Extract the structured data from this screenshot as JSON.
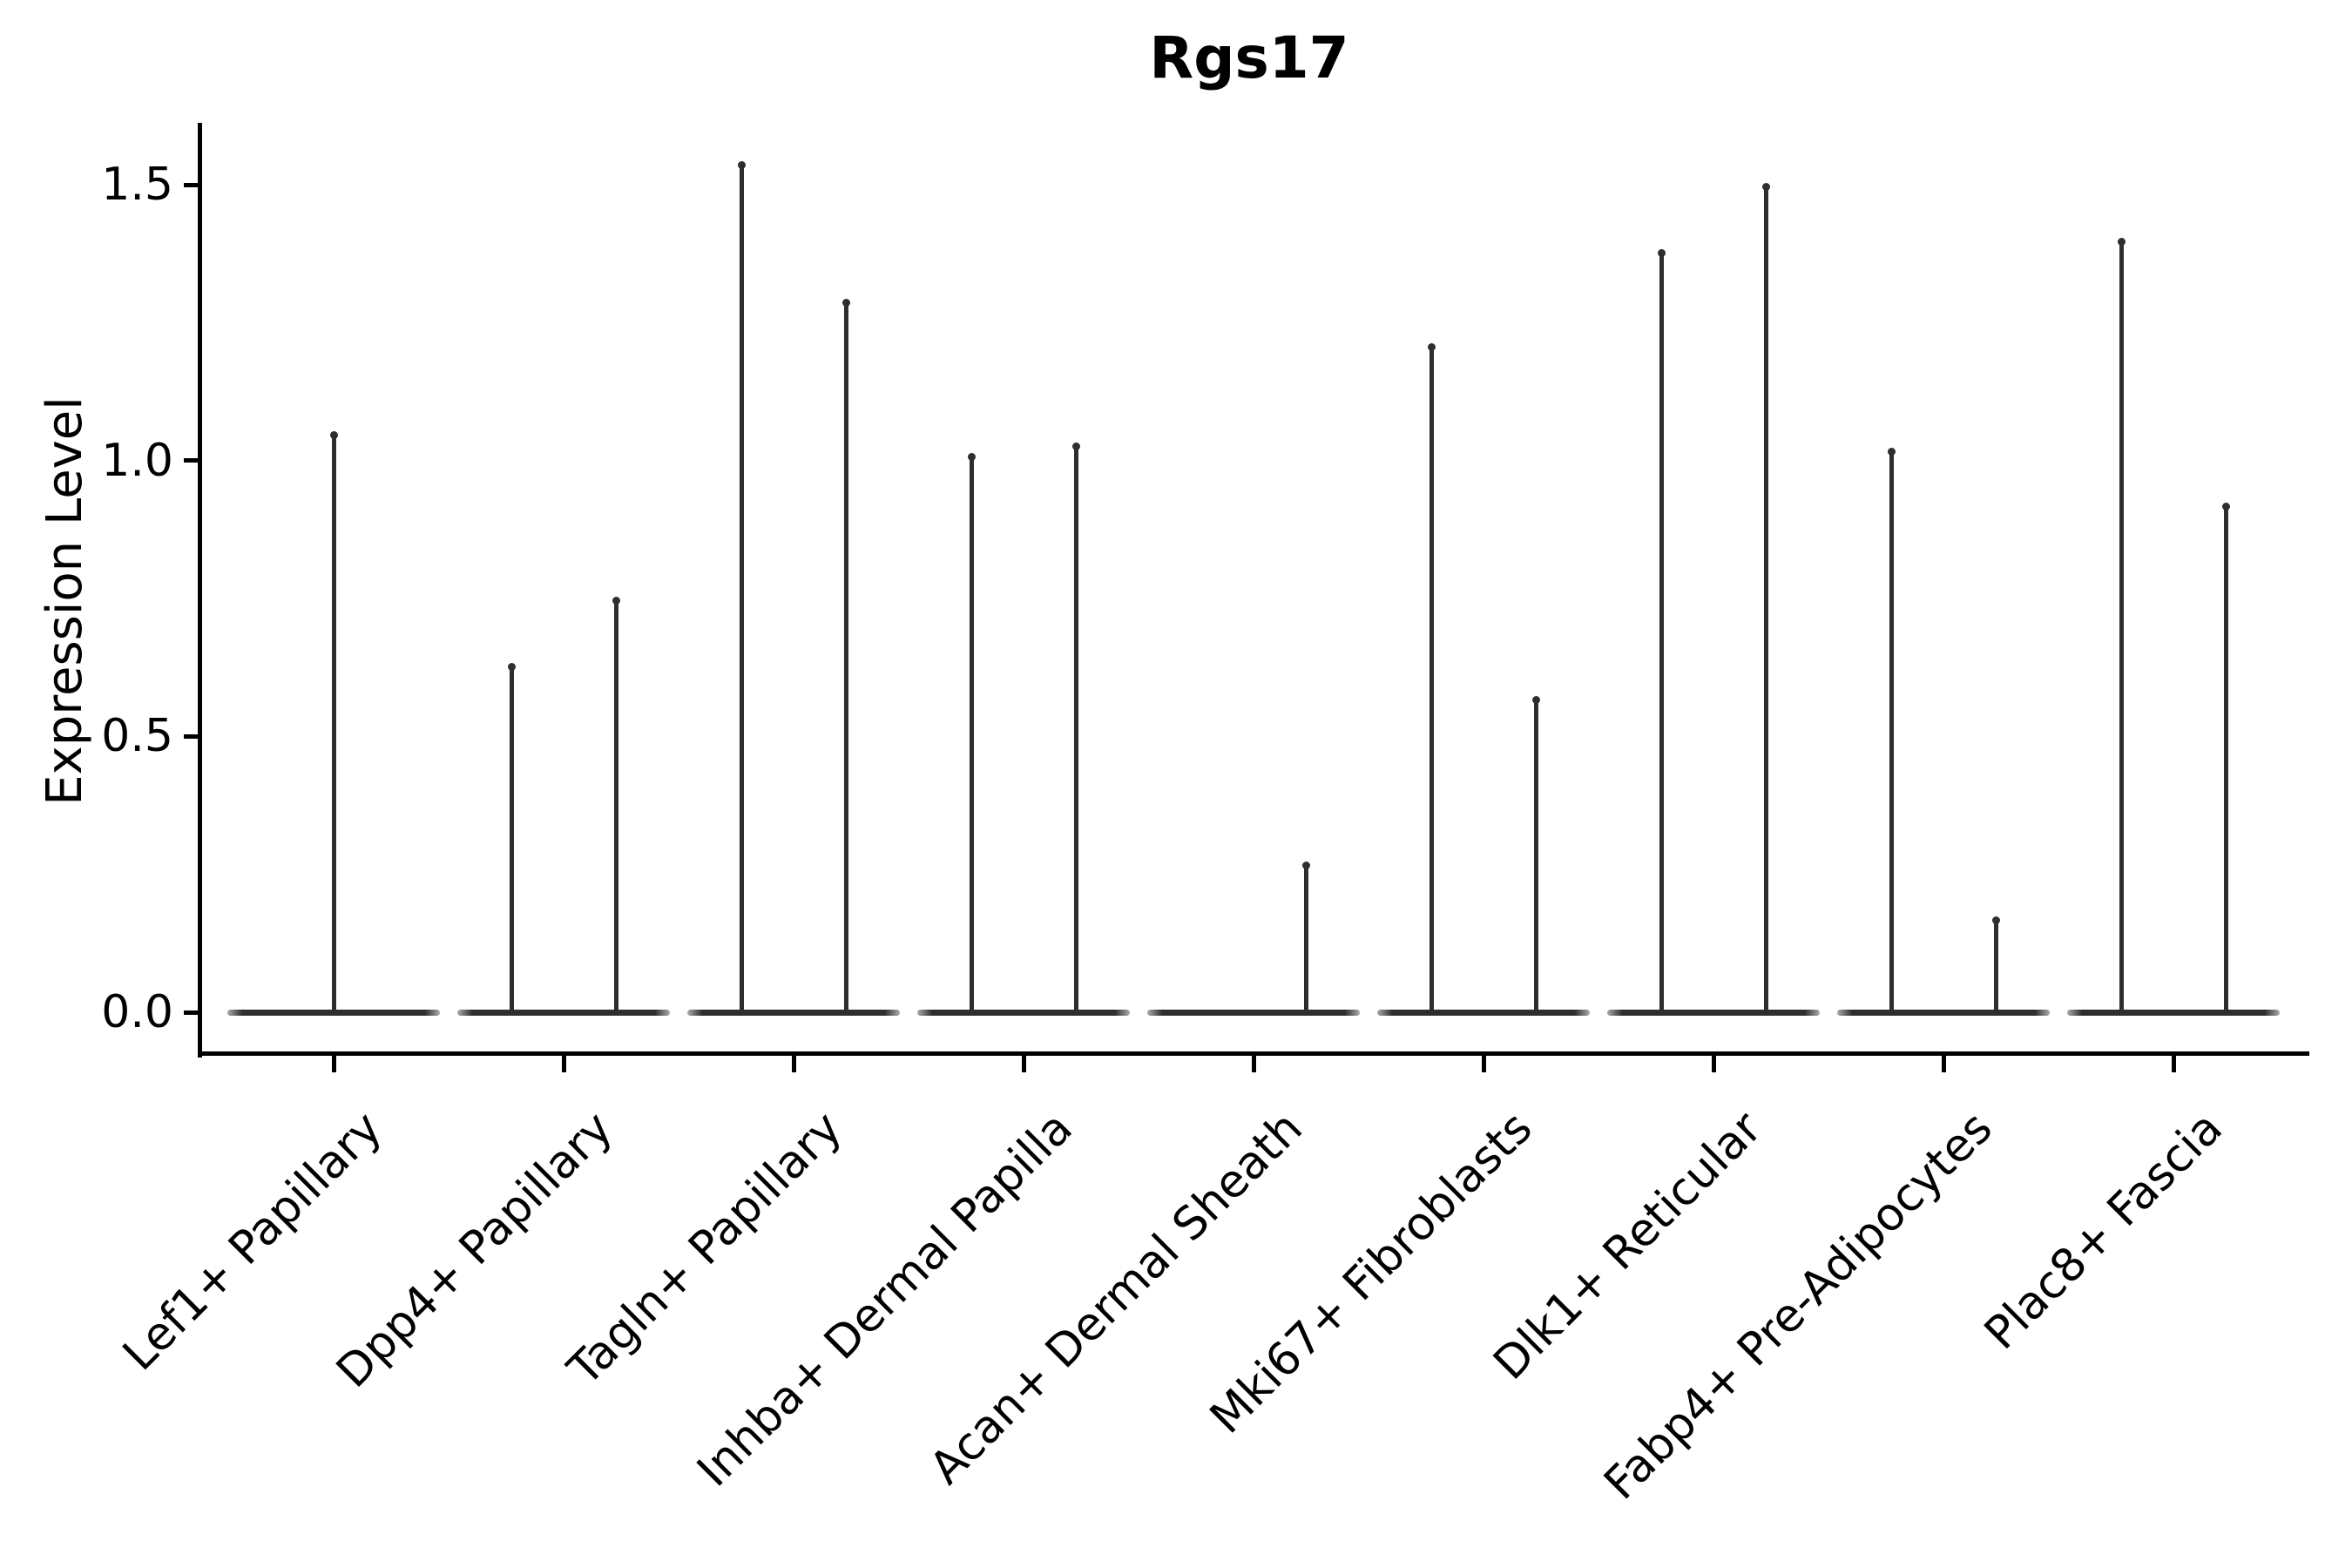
{
  "title": "Rgs17",
  "y_axis": {
    "label": "Expression Level",
    "ticks": [
      "0.0",
      "0.5",
      "1.0",
      "1.5"
    ],
    "tick_values": [
      0,
      0.5,
      1.0,
      1.5
    ]
  },
  "colors": {
    "violin": "#2e2e2e",
    "axis": "#000000",
    "background": "#ffffff",
    "text": "#000000"
  },
  "chart_data": {
    "type": "violin",
    "title": "Rgs17",
    "xlabel": "",
    "ylabel": "Expression Level",
    "ylim": [
      -0.07,
      1.61
    ],
    "grid": false,
    "legend": "none",
    "baseline_value": 0,
    "description": "Each category shows a collapsed violin: a wide flat base at expression 0 plus thin needle spikes at the listed values.",
    "categories": [
      "Lef1+ Papillary",
      "Dpp4+ Papillary",
      "Tagln+ Papillary",
      "Inhba+ Dermal Papilla",
      "Acan+ Dermal Sheath",
      "Mki67+ Fibroblasts",
      "Dlk1+ Reticular",
      "Fabp4+ Pre-Adipocytes",
      "Plac8+ Fascia"
    ],
    "series": [
      {
        "category": "Lef1+ Papillary",
        "spikes": [
          {
            "position": "center",
            "value": 1.05
          }
        ]
      },
      {
        "category": "Dpp4+ Papillary",
        "spikes": [
          {
            "position": "left",
            "value": 0.63
          },
          {
            "position": "right",
            "value": 0.75
          }
        ]
      },
      {
        "category": "Tagln+ Papillary",
        "spikes": [
          {
            "position": "left",
            "value": 1.54
          },
          {
            "position": "right",
            "value": 1.29
          }
        ]
      },
      {
        "category": "Inhba+ Dermal Papilla",
        "spikes": [
          {
            "position": "left",
            "value": 1.01
          },
          {
            "position": "right",
            "value": 1.03
          }
        ]
      },
      {
        "category": "Acan+ Dermal Sheath",
        "spikes": [
          {
            "position": "right",
            "value": 0.27
          }
        ]
      },
      {
        "category": "Mki67+ Fibroblasts",
        "spikes": [
          {
            "position": "left",
            "value": 1.21
          },
          {
            "position": "right",
            "value": 0.57
          }
        ]
      },
      {
        "category": "Dlk1+ Reticular",
        "spikes": [
          {
            "position": "left",
            "value": 1.38
          },
          {
            "position": "right",
            "value": 1.5
          }
        ]
      },
      {
        "category": "Fabp4+ Pre-Adipocytes",
        "spikes": [
          {
            "position": "left",
            "value": 1.02
          },
          {
            "position": "right",
            "value": 0.17
          }
        ]
      },
      {
        "category": "Plac8+ Fascia",
        "spikes": [
          {
            "position": "left",
            "value": 1.4
          },
          {
            "position": "right",
            "value": 0.92
          }
        ]
      }
    ]
  }
}
